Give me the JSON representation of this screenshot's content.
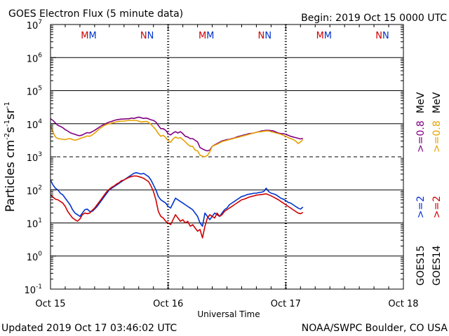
{
  "chart_data": {
    "type": "line",
    "title": "GOES Electron Flux (5 minute data)",
    "begin_label": "Begin: 2019 Oct 15 0000 UTC",
    "xlabel": "Universal Time",
    "ylabel": {
      "main": "Particles cm",
      "e1": "-2",
      "s1": "s",
      "e2": "-1",
      "s2": "sr",
      "e3": "-1"
    },
    "updated": "Updated 2019 Oct 17 03:46:02 UTC",
    "source": "NOAA/SWPC Boulder, CO USA",
    "x_range_hours": [
      0,
      72
    ],
    "y_log_range": [
      -1,
      7
    ],
    "x_ticks": [
      {
        "hour": 0,
        "label": "Oct 15"
      },
      {
        "hour": 24,
        "label": "Oct 16"
      },
      {
        "hour": 48,
        "label": "Oct 17"
      },
      {
        "hour": 72,
        "label": "Oct 18"
      }
    ],
    "y_ticks": [
      {
        "exp": 7,
        "base": "10",
        "sup": "7"
      },
      {
        "exp": 6,
        "base": "10",
        "sup": "6"
      },
      {
        "exp": 5,
        "base": "10",
        "sup": "5"
      },
      {
        "exp": 4,
        "base": "10",
        "sup": "4"
      },
      {
        "exp": 3,
        "base": "10",
        "sup": "3"
      },
      {
        "exp": 2,
        "base": "10",
        "sup": "2"
      },
      {
        "exp": 1,
        "base": "10",
        "sup": "1"
      },
      {
        "exp": 0,
        "base": "10",
        "sup": "0"
      },
      {
        "exp": -1,
        "base": "10",
        "sup": "-1"
      }
    ],
    "threshold_exp": 3,
    "day_boundary_hours": [
      24,
      48
    ],
    "markers": [
      {
        "hour": 7,
        "text": "M",
        "color": "#d00000"
      },
      {
        "hour": 8.6,
        "text": "M",
        "color": "#0033cc"
      },
      {
        "hour": 19,
        "text": "N",
        "color": "#d00000"
      },
      {
        "hour": 20.4,
        "text": "N",
        "color": "#0033cc"
      },
      {
        "hour": 31,
        "text": "M",
        "color": "#d00000"
      },
      {
        "hour": 32.6,
        "text": "M",
        "color": "#0033cc"
      },
      {
        "hour": 43,
        "text": "N",
        "color": "#d00000"
      },
      {
        "hour": 44.4,
        "text": "N",
        "color": "#0033cc"
      },
      {
        "hour": 55,
        "text": "M",
        "color": "#d00000"
      },
      {
        "hour": 56.6,
        "text": "M",
        "color": "#0033cc"
      },
      {
        "hour": 67,
        "text": "N",
        "color": "#d00000"
      },
      {
        "hour": 68.4,
        "text": "N",
        "color": "#0033cc"
      }
    ],
    "legend": {
      "goes15": {
        "label": "GOES15",
        "color": "#000000"
      },
      "goes14": {
        "label": "GOES14",
        "color": "#000000"
      },
      "e2_15": {
        "label": ">=2",
        "color": "#0033cc"
      },
      "e2_14": {
        "label": ">=2",
        "color": "#d00000"
      },
      "e08_15": {
        "label": ">=0.8",
        "color": "#800080"
      },
      "e08_14": {
        "label": ">=0.8",
        "color": "#e6a000"
      },
      "mev": "MeV"
    },
    "series": [
      {
        "name": "GOES15 >=0.8 MeV",
        "color": "#800080",
        "hours": [
          0,
          0.5,
          1,
          1.5,
          2,
          2.5,
          3,
          3.5,
          4,
          4.5,
          5,
          5.5,
          6,
          6.5,
          7,
          7.5,
          8,
          8.5,
          9,
          9.5,
          10,
          10.5,
          11,
          11.5,
          12,
          12.5,
          13,
          13.5,
          14,
          14.5,
          15,
          15.5,
          16,
          16.5,
          17,
          17.5,
          18,
          18.5,
          19,
          19.5,
          20,
          20.5,
          21,
          21.5,
          22,
          22.5,
          23,
          23.5,
          24,
          24.5,
          25,
          25.5,
          26,
          26.5,
          27,
          27.5,
          28,
          28.5,
          29,
          29.5,
          30,
          30.5,
          31,
          31.5,
          32,
          32.5,
          33,
          33.5,
          34,
          34.5,
          35,
          35.5,
          36,
          36.5,
          37,
          37.5,
          38,
          38.5,
          39,
          39.5,
          40,
          40.5,
          41,
          41.5,
          42,
          42.5,
          43,
          43.5,
          44,
          44.5,
          45,
          45.5,
          46,
          46.5,
          47,
          47.5,
          48,
          48.5,
          49,
          49.5,
          50,
          50.5,
          51,
          51.5
        ],
        "log_values": [
          4.15,
          4.1,
          4.02,
          3.95,
          3.92,
          3.88,
          3.82,
          3.78,
          3.73,
          3.7,
          3.68,
          3.65,
          3.64,
          3.66,
          3.7,
          3.73,
          3.72,
          3.76,
          3.8,
          3.85,
          3.9,
          3.95,
          3.98,
          4.02,
          4.05,
          4.07,
          4.1,
          4.12,
          4.13,
          4.14,
          4.14,
          4.15,
          4.15,
          4.17,
          4.16,
          4.18,
          4.2,
          4.18,
          4.16,
          4.17,
          4.15,
          4.12,
          4.1,
          4.05,
          3.95,
          3.85,
          3.85,
          3.8,
          3.7,
          3.66,
          3.72,
          3.76,
          3.72,
          3.76,
          3.7,
          3.62,
          3.6,
          3.55,
          3.55,
          3.5,
          3.45,
          3.28,
          3.24,
          3.2,
          3.18,
          3.2,
          3.32,
          3.36,
          3.4,
          3.44,
          3.48,
          3.5,
          3.52,
          3.53,
          3.55,
          3.57,
          3.6,
          3.62,
          3.64,
          3.66,
          3.68,
          3.7,
          3.71,
          3.72,
          3.74,
          3.76,
          3.78,
          3.79,
          3.8,
          3.8,
          3.79,
          3.78,
          3.75,
          3.72,
          3.7,
          3.7,
          3.68,
          3.65,
          3.62,
          3.6,
          3.58,
          3.56,
          3.54,
          3.56
        ]
      },
      {
        "name": "GOES14 >=0.8 MeV",
        "color": "#e6a000",
        "hours": [
          0,
          0.5,
          1,
          1.5,
          2,
          2.5,
          3,
          3.5,
          4,
          4.5,
          5,
          5.5,
          6,
          6.5,
          7,
          7.5,
          8,
          8.5,
          9,
          9.5,
          10,
          10.5,
          11,
          11.5,
          12,
          12.5,
          13,
          13.5,
          14,
          14.5,
          15,
          15.5,
          16,
          16.5,
          17,
          17.5,
          18,
          18.5,
          19,
          19.5,
          20,
          20.5,
          21,
          21.5,
          22,
          22.5,
          23,
          23.5,
          24,
          24.5,
          25,
          25.5,
          26,
          26.5,
          27,
          27.5,
          28,
          28.5,
          29,
          29.5,
          30,
          30.5,
          31,
          31.5,
          32,
          32.5,
          33,
          33.5,
          34,
          34.5,
          35,
          35.5,
          36,
          36.5,
          37,
          37.5,
          38,
          38.5,
          39,
          39.5,
          40,
          40.5,
          41,
          41.5,
          42,
          42.5,
          43,
          43.5,
          44,
          44.5,
          45,
          45.5,
          46,
          46.5,
          47,
          47.5,
          48,
          48.5,
          49,
          49.5,
          50,
          50.5,
          51,
          51.5
        ],
        "log_values": [
          3.95,
          3.75,
          3.6,
          3.55,
          3.54,
          3.53,
          3.52,
          3.54,
          3.55,
          3.52,
          3.5,
          3.52,
          3.55,
          3.58,
          3.6,
          3.63,
          3.62,
          3.66,
          3.72,
          3.78,
          3.85,
          3.9,
          3.95,
          3.98,
          4.0,
          4.02,
          4.04,
          4.06,
          4.07,
          4.08,
          4.08,
          4.09,
          4.1,
          4.1,
          4.1,
          4.1,
          4.08,
          4.05,
          4.06,
          4.07,
          4.04,
          3.98,
          3.9,
          3.82,
          3.7,
          3.62,
          3.65,
          3.58,
          3.48,
          3.44,
          3.54,
          3.6,
          3.56,
          3.58,
          3.52,
          3.45,
          3.38,
          3.32,
          3.32,
          3.2,
          3.18,
          3.05,
          3.02,
          3.0,
          3.04,
          3.15,
          3.32,
          3.35,
          3.38,
          3.42,
          3.46,
          3.48,
          3.5,
          3.52,
          3.54,
          3.56,
          3.58,
          3.6,
          3.62,
          3.64,
          3.66,
          3.68,
          3.7,
          3.72,
          3.74,
          3.75,
          3.76,
          3.77,
          3.78,
          3.78,
          3.76,
          3.74,
          3.72,
          3.7,
          3.68,
          3.65,
          3.62,
          3.58,
          3.55,
          3.52,
          3.48,
          3.4,
          3.45,
          3.52
        ]
      },
      {
        "name": "GOES15 >=2 MeV",
        "color": "#0033cc",
        "hours": [
          0,
          0.5,
          1,
          1.5,
          2,
          2.5,
          3,
          3.5,
          4,
          4.5,
          5,
          5.5,
          6,
          6.5,
          7,
          7.5,
          8,
          8.5,
          9,
          9.5,
          10,
          10.5,
          11,
          11.5,
          12,
          12.5,
          13,
          13.5,
          14,
          14.5,
          15,
          15.5,
          16,
          16.5,
          17,
          17.5,
          18,
          18.5,
          19,
          19.5,
          20,
          20.5,
          21,
          21.5,
          22,
          22.5,
          23,
          23.5,
          24,
          24.5,
          25,
          25.5,
          26,
          26.5,
          27,
          27.5,
          28,
          28.5,
          29,
          29.5,
          30,
          30.5,
          31,
          31.5,
          32,
          32.5,
          33,
          33.5,
          34,
          34.5,
          35,
          35.5,
          36,
          36.5,
          37,
          37.5,
          38,
          38.5,
          39,
          39.5,
          40,
          40.5,
          41,
          41.5,
          42,
          42.5,
          43,
          43.5,
          44,
          44.5,
          45,
          45.5,
          46,
          46.5,
          47,
          47.5,
          48,
          48.5,
          49,
          49.5,
          50,
          50.5,
          51,
          51.5
        ],
        "log_values": [
          2.3,
          2.15,
          2.05,
          2.0,
          1.9,
          1.85,
          1.75,
          1.65,
          1.55,
          1.4,
          1.3,
          1.25,
          1.2,
          1.3,
          1.4,
          1.42,
          1.35,
          1.35,
          1.42,
          1.5,
          1.6,
          1.7,
          1.8,
          1.9,
          2.0,
          2.05,
          2.1,
          2.15,
          2.2,
          2.25,
          2.3,
          2.35,
          2.4,
          2.45,
          2.5,
          2.52,
          2.5,
          2.48,
          2.5,
          2.45,
          2.4,
          2.3,
          2.15,
          2.0,
          1.8,
          1.7,
          1.65,
          1.6,
          1.5,
          1.45,
          1.6,
          1.75,
          1.7,
          1.65,
          1.6,
          1.55,
          1.5,
          1.45,
          1.4,
          1.3,
          1.2,
          1.0,
          0.9,
          1.3,
          1.2,
          1.1,
          1.2,
          1.3,
          1.25,
          1.2,
          1.3,
          1.4,
          1.45,
          1.55,
          1.6,
          1.65,
          1.7,
          1.75,
          1.8,
          1.82,
          1.85,
          1.87,
          1.88,
          1.9,
          1.9,
          1.92,
          1.93,
          1.95,
          2.05,
          1.95,
          1.9,
          1.88,
          1.85,
          1.8,
          1.75,
          1.72,
          1.68,
          1.62,
          1.6,
          1.55,
          1.5,
          1.45,
          1.42,
          1.48
        ]
      },
      {
        "name": "GOES14 >=2 MeV",
        "color": "#d00000",
        "hours": [
          0,
          0.5,
          1,
          1.5,
          2,
          2.5,
          3,
          3.5,
          4,
          4.5,
          5,
          5.5,
          6,
          6.5,
          7,
          7.5,
          8,
          8.5,
          9,
          9.5,
          10,
          10.5,
          11,
          11.5,
          12,
          12.5,
          13,
          13.5,
          14,
          14.5,
          15,
          15.5,
          16,
          16.5,
          17,
          17.5,
          18,
          18.5,
          19,
          19.5,
          20,
          20.5,
          21,
          21.5,
          22,
          22.5,
          23,
          23.5,
          24,
          24.5,
          25,
          25.5,
          26,
          26.5,
          27,
          27.5,
          28,
          28.5,
          29,
          29.5,
          30,
          30.5,
          31,
          31.5,
          32,
          32.5,
          33,
          33.5,
          34,
          34.5,
          35,
          35.5,
          36,
          36.5,
          37,
          37.5,
          38,
          38.5,
          39,
          39.5,
          40,
          40.5,
          41,
          41.5,
          42,
          42.5,
          43,
          43.5,
          44,
          44.5,
          45,
          45.5,
          46,
          46.5,
          47,
          47.5,
          48,
          48.5,
          49,
          49.5,
          50,
          50.5,
          51,
          51.5
        ],
        "log_values": [
          1.85,
          1.78,
          1.72,
          1.7,
          1.65,
          1.6,
          1.5,
          1.35,
          1.25,
          1.15,
          1.1,
          1.05,
          1.12,
          1.25,
          1.3,
          1.28,
          1.3,
          1.38,
          1.45,
          1.55,
          1.65,
          1.75,
          1.85,
          1.95,
          2.02,
          2.08,
          2.12,
          2.18,
          2.22,
          2.28,
          2.3,
          2.34,
          2.38,
          2.4,
          2.42,
          2.42,
          2.4,
          2.38,
          2.35,
          2.3,
          2.25,
          2.12,
          1.95,
          1.7,
          1.35,
          1.2,
          1.15,
          1.05,
          1.0,
          0.95,
          1.1,
          1.25,
          1.15,
          1.05,
          1.1,
          1.0,
          1.05,
          0.9,
          0.95,
          0.85,
          0.75,
          0.8,
          0.55,
          0.9,
          1.15,
          1.25,
          1.2,
          1.15,
          1.3,
          1.2,
          1.25,
          1.35,
          1.4,
          1.45,
          1.5,
          1.55,
          1.6,
          1.65,
          1.7,
          1.72,
          1.75,
          1.78,
          1.8,
          1.82,
          1.84,
          1.85,
          1.86,
          1.87,
          1.88,
          1.85,
          1.82,
          1.78,
          1.74,
          1.7,
          1.65,
          1.6,
          1.55,
          1.5,
          1.45,
          1.4,
          1.35,
          1.3,
          1.28,
          1.32
        ]
      }
    ]
  }
}
